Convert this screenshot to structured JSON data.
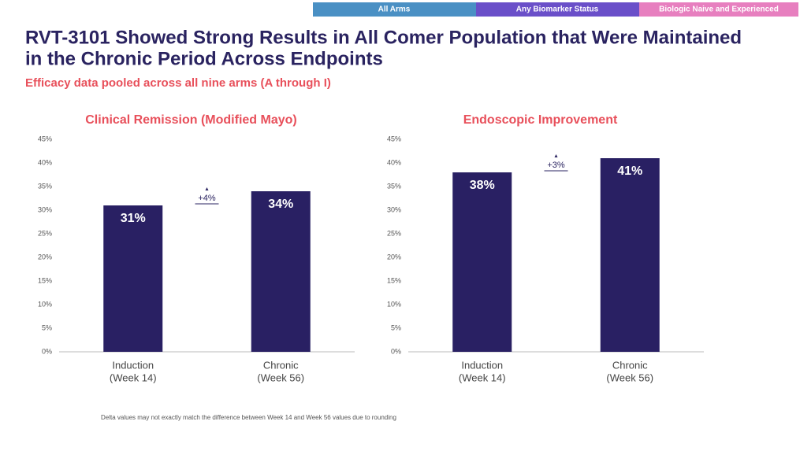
{
  "tabs": [
    "All Arms",
    "Any Biomarker Status",
    "Biologic Naive and Experienced"
  ],
  "title_lines": [
    "RVT-3101 Showed Strong Results in All Comer Population that Were Maintained",
    "in the Chronic Period Across Endpoints"
  ],
  "subtitle": "Efficacy data pooled across all nine arms (A through I)",
  "footnote": "Delta values may not exactly match the difference between Week 14 and Week 56 values due to rounding",
  "chart_data": [
    {
      "type": "bar",
      "title": "Clinical Remission (Modified Mayo)",
      "categories": [
        [
          "Induction",
          "(Week 14)"
        ],
        [
          "Chronic",
          "(Week 56)"
        ]
      ],
      "values": [
        31,
        34
      ],
      "value_labels": [
        "31%",
        "34%"
      ],
      "color": "#292063",
      "annotation": "+4%",
      "ylim": [
        0,
        45
      ],
      "yticks": [
        {
          "value": 0,
          "label": "0%"
        },
        {
          "value": 5,
          "label": "5%"
        },
        {
          "value": 10,
          "label": "10%"
        },
        {
          "value": 15,
          "label": "15%"
        },
        {
          "value": 20,
          "label": "20%"
        },
        {
          "value": 25,
          "label": "25%"
        },
        {
          "value": 30,
          "label": "30%"
        },
        {
          "value": 35,
          "label": "35%"
        },
        {
          "value": 40,
          "label": "40%"
        },
        {
          "value": 45,
          "label": "45%"
        }
      ],
      "grid": false
    },
    {
      "type": "bar",
      "title": "Endoscopic Improvement",
      "categories": [
        [
          "Induction",
          "(Week 14)"
        ],
        [
          "Chronic",
          "(Week 56)"
        ]
      ],
      "values": [
        38,
        41
      ],
      "value_labels": [
        "38%",
        "41%"
      ],
      "color": "#292063",
      "annotation": "+3%",
      "ylim": [
        0,
        45
      ],
      "yticks": [
        {
          "value": 0,
          "label": "0%"
        },
        {
          "value": 5,
          "label": "5%"
        },
        {
          "value": 10,
          "label": "10%"
        },
        {
          "value": 15,
          "label": "15%"
        },
        {
          "value": 20,
          "label": "20%"
        },
        {
          "value": 25,
          "label": "25%"
        },
        {
          "value": 30,
          "label": "30%"
        },
        {
          "value": 35,
          "label": "35%"
        },
        {
          "value": 40,
          "label": "40%"
        },
        {
          "value": 45,
          "label": "45%"
        }
      ],
      "grid": false
    }
  ]
}
